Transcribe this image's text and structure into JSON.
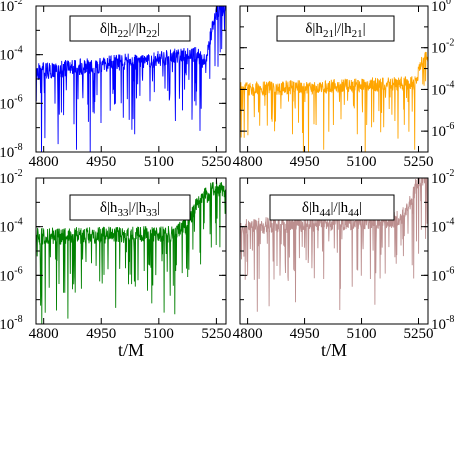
{
  "figure": {
    "xlabel": "t/M"
  },
  "chart_data": [
    {
      "type": "line",
      "id": "h22",
      "legend": {
        "base": "δ|h",
        "s1": "22",
        "mid": "|/|h",
        "s2": "22",
        "end": "|"
      },
      "color": "#0000ff",
      "xlim": [
        4780,
        5275
      ],
      "ylim_exponent": [
        -8,
        -2
      ],
      "yscale": "log",
      "y_axis_side": "left",
      "xticks": [
        4800,
        4950,
        5100,
        5250
      ],
      "yticks": [
        {
          "base": "10",
          "exp": "-2"
        },
        {
          "base": "10",
          "exp": "-4"
        },
        {
          "base": "10",
          "exp": "-6"
        },
        {
          "base": "10",
          "exp": "-8"
        }
      ],
      "xlabel": "",
      "series": [
        {
          "x": [
            4780,
            5200,
            5220,
            5245,
            5260,
            5275
          ],
          "y": [
            2e-05,
            0.0001,
            5e-05,
            0.003,
            0.008,
            0.008
          ]
        }
      ]
    },
    {
      "type": "line",
      "id": "h21",
      "legend": {
        "base": "δ|h",
        "s1": "21",
        "mid": "|/|h",
        "s2": "21",
        "end": "|"
      },
      "color": "#ffa500",
      "xlim": [
        4780,
        5275
      ],
      "ylim_exponent": [
        -7,
        0
      ],
      "yscale": "log",
      "y_axis_side": "right",
      "xticks": [
        4800,
        4950,
        5100,
        5250
      ],
      "yticks": [
        {
          "base": "10",
          "exp": "0"
        },
        {
          "base": "10",
          "exp": "-2"
        },
        {
          "base": "10",
          "exp": "-4"
        },
        {
          "base": "10",
          "exp": "-6"
        }
      ],
      "xlabel": "",
      "series": [
        {
          "x": [
            4780,
            5240,
            5260,
            5275
          ],
          "y": [
            0.0001,
            0.0002,
            0.002,
            0.005
          ]
        }
      ]
    },
    {
      "type": "line",
      "id": "h33",
      "legend": {
        "base": "δ|h",
        "s1": "33",
        "mid": "|/|h",
        "s2": "33",
        "end": "|"
      },
      "color": "#008000",
      "xlim": [
        4780,
        5275
      ],
      "ylim_exponent": [
        -8,
        -2
      ],
      "yscale": "log",
      "y_axis_side": "left",
      "xticks": [
        4800,
        4950,
        5100,
        5250
      ],
      "yticks": [
        {
          "base": "10",
          "exp": "-2"
        },
        {
          "base": "10",
          "exp": "-4"
        },
        {
          "base": "10",
          "exp": "-6"
        },
        {
          "base": "10",
          "exp": "-8"
        }
      ],
      "xlabel": "t/M",
      "series": [
        {
          "x": [
            4780,
            5140,
            5170,
            5200,
            5210,
            5225,
            5240,
            5275
          ],
          "y": [
            4e-05,
            5e-05,
            0.0001,
            0.001,
            0.002,
            0.002,
            0.004,
            0.003
          ]
        }
      ]
    },
    {
      "type": "line",
      "id": "h44",
      "legend": {
        "base": "δ|h",
        "s1": "44",
        "mid": "|/|h",
        "s2": "44",
        "end": "|"
      },
      "color": "#bc8f8f",
      "xlim": [
        4780,
        5275
      ],
      "ylim_exponent": [
        -8,
        -2
      ],
      "yscale": "log",
      "y_axis_side": "right",
      "xticks": [
        4800,
        4950,
        5100,
        5250
      ],
      "yticks": [
        {
          "base": "10",
          "exp": "-2"
        },
        {
          "base": "10",
          "exp": "-4"
        },
        {
          "base": "10",
          "exp": "-6"
        },
        {
          "base": "10",
          "exp": "-8"
        }
      ],
      "xlabel": "t/M",
      "series": [
        {
          "x": [
            4780,
            5200,
            5230,
            5245,
            5260,
            5275
          ],
          "y": [
            0.0001,
            0.0002,
            0.001,
            0.006,
            0.01,
            0.01
          ]
        }
      ]
    }
  ]
}
